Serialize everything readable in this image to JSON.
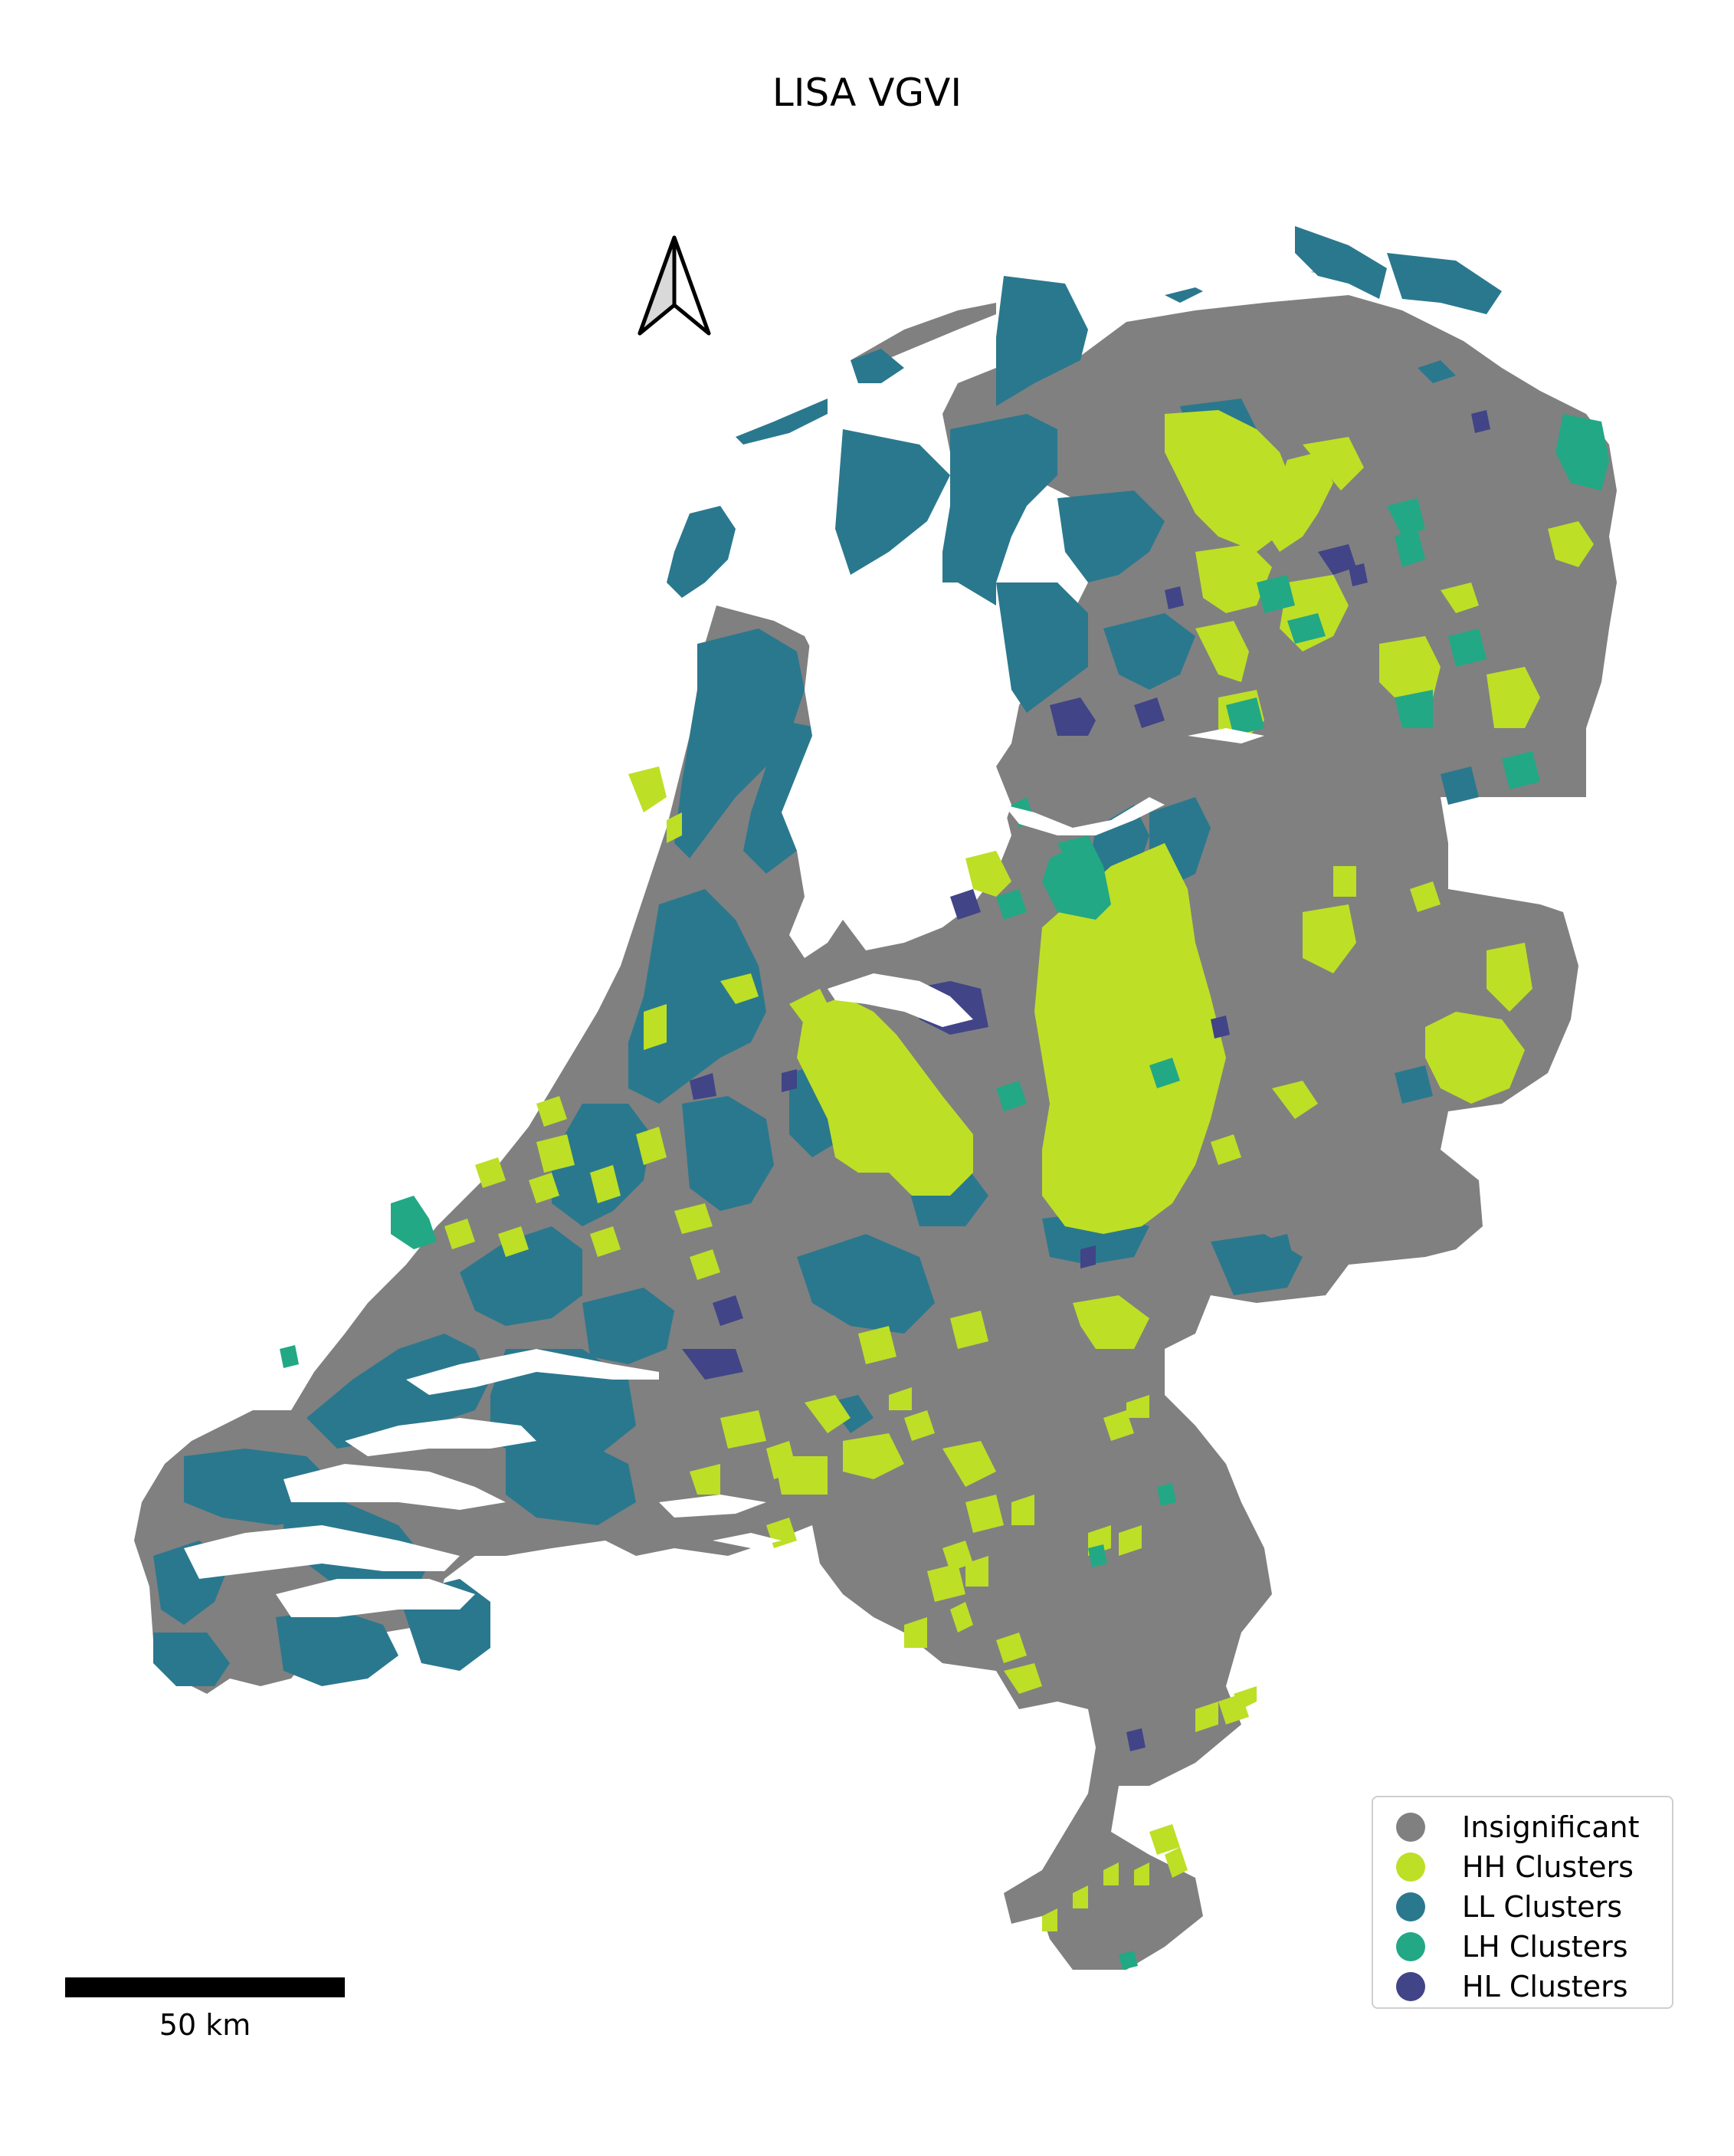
{
  "title": "LISA VGVI",
  "colors": {
    "background": "#ffffff",
    "insignificant": "#808080",
    "hh": "#bddf26",
    "ll": "#2a788e",
    "lh": "#22a884",
    "hl": "#414487"
  },
  "legend": {
    "placement": "bottom-right",
    "items": [
      {
        "label": "Insignificant",
        "color": "#808080"
      },
      {
        "label": "HH Clusters",
        "color": "#bddf26"
      },
      {
        "label": "LL Clusters",
        "color": "#2a788e"
      },
      {
        "label": "LH Clusters",
        "color": "#22a884"
      },
      {
        "label": "HL Clusters",
        "color": "#414487"
      }
    ]
  },
  "scale_bar": {
    "label": "50 km"
  },
  "north_arrow": {
    "icon": "north-arrow-icon"
  }
}
